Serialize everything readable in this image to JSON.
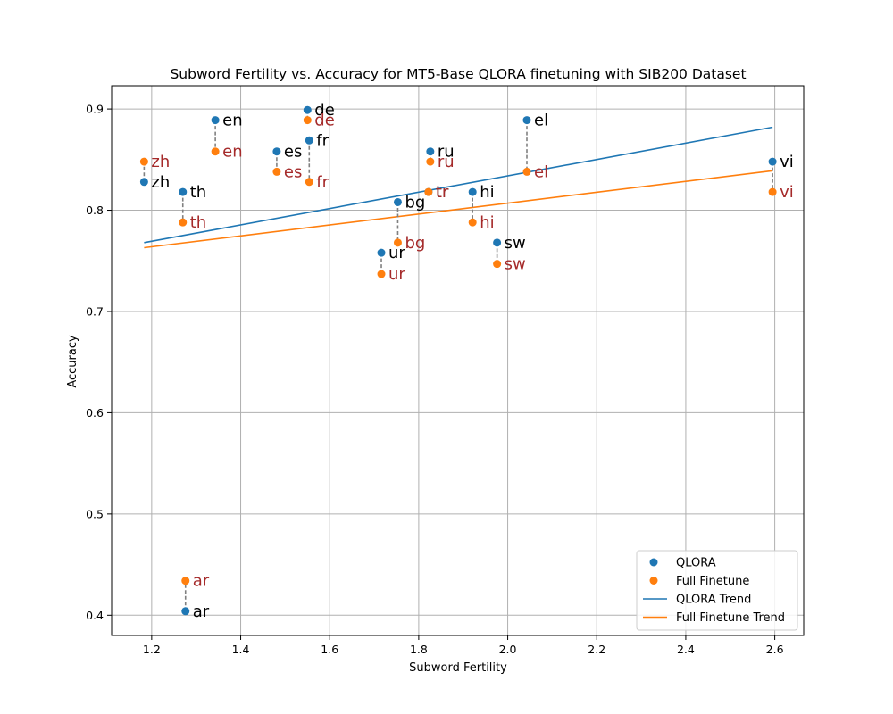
{
  "chart_data": {
    "type": "scatter",
    "title": "Subword Fertility vs. Accuracy for MT5-Base QLORA finetuning with SIB200 Dataset",
    "xlabel": "Subword Fertility",
    "ylabel": "Accuracy",
    "xlim": [
      1.11,
      2.665
    ],
    "ylim": [
      0.38,
      0.923
    ],
    "xticks": [
      "1.2",
      "1.4",
      "1.6",
      "1.8",
      "2.0",
      "2.2",
      "2.4",
      "2.6"
    ],
    "yticks": [
      "0.4",
      "0.5",
      "0.6",
      "0.7",
      "0.8",
      "0.9"
    ],
    "grid": true,
    "legend_position": "bottom-right",
    "legend": [
      "QLORA",
      "Full Finetune",
      "QLORA Trend",
      "Full Finetune Trend"
    ],
    "colors": {
      "qlora": "#1f77b4",
      "full": "#ff7f0e",
      "qlora_label": "#000000",
      "full_label": "#a52a2a",
      "connector": "#808080",
      "grid": "#b0b0b0"
    },
    "points": [
      {
        "lang": "zh",
        "fertility": 1.183,
        "qlora": 0.828,
        "full": 0.848
      },
      {
        "lang": "th",
        "fertility": 1.27,
        "qlora": 0.818,
        "full": 0.788
      },
      {
        "lang": "ar",
        "fertility": 1.276,
        "qlora": 0.404,
        "full": 0.434
      },
      {
        "lang": "en",
        "fertility": 1.343,
        "qlora": 0.889,
        "full": 0.858
      },
      {
        "lang": "es",
        "fertility": 1.481,
        "qlora": 0.858,
        "full": 0.838
      },
      {
        "lang": "de",
        "fertility": 1.55,
        "qlora": 0.899,
        "full": 0.889
      },
      {
        "lang": "fr",
        "fertility": 1.554,
        "qlora": 0.869,
        "full": 0.828
      },
      {
        "lang": "ur",
        "fertility": 1.716,
        "qlora": 0.758,
        "full": 0.737
      },
      {
        "lang": "bg",
        "fertility": 1.753,
        "qlora": 0.808,
        "full": 0.768
      },
      {
        "lang": "tr",
        "fertility": 1.822,
        "qlora": 0.818,
        "full": 0.818
      },
      {
        "lang": "ru",
        "fertility": 1.826,
        "qlora": 0.858,
        "full": 0.848
      },
      {
        "lang": "hi",
        "fertility": 1.921,
        "qlora": 0.818,
        "full": 0.788
      },
      {
        "lang": "sw",
        "fertility": 1.976,
        "qlora": 0.768,
        "full": 0.747
      },
      {
        "lang": "el",
        "fertility": 2.043,
        "qlora": 0.889,
        "full": 0.838
      },
      {
        "lang": "vi",
        "fertility": 2.595,
        "qlora": 0.848,
        "full": 0.818
      }
    ],
    "trends": [
      {
        "name": "QLORA Trend",
        "x": [
          1.183,
          2.595
        ],
        "y": [
          0.768,
          0.882
        ]
      },
      {
        "name": "Full Finetune Trend",
        "x": [
          1.183,
          2.595
        ],
        "y": [
          0.763,
          0.839
        ]
      }
    ]
  }
}
